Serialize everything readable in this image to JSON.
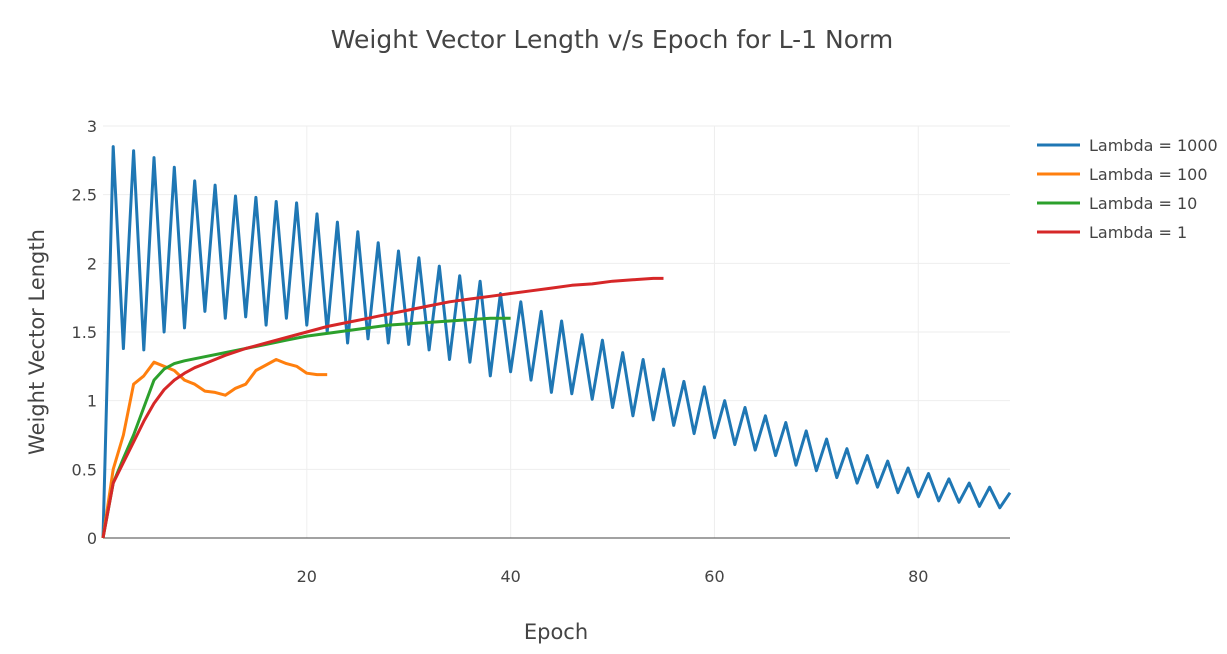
{
  "chart_data": {
    "type": "line",
    "title": "Weight Vector Length v/s Epoch for L-1 Norm",
    "xlabel": "Epoch",
    "ylabel": "Weight Vector Length",
    "xlim": [
      0,
      89
    ],
    "ylim": [
      0,
      3
    ],
    "xticks": [
      20,
      40,
      60,
      80
    ],
    "yticks": [
      0,
      0.5,
      1,
      1.5,
      2,
      2.5,
      3
    ],
    "grid": true,
    "legend": "top-right",
    "series": [
      {
        "name": "Lambda = 1000",
        "color": "#1f77b4",
        "x": [
          0,
          1,
          2,
          3,
          4,
          5,
          6,
          7,
          8,
          9,
          10,
          11,
          12,
          13,
          14,
          15,
          16,
          17,
          18,
          19,
          20,
          21,
          22,
          23,
          24,
          25,
          26,
          27,
          28,
          29,
          30,
          31,
          32,
          33,
          34,
          35,
          36,
          37,
          38,
          39,
          40,
          41,
          42,
          43,
          44,
          45,
          46,
          47,
          48,
          49,
          50,
          51,
          52,
          53,
          54,
          55,
          56,
          57,
          58,
          59,
          60,
          61,
          62,
          63,
          64,
          65,
          66,
          67,
          68,
          69,
          70,
          71,
          72,
          73,
          74,
          75,
          76,
          77,
          78,
          79,
          80,
          81,
          82,
          83,
          84,
          85,
          86,
          87,
          88,
          89
        ],
        "values": [
          0,
          2.85,
          1.38,
          2.82,
          1.37,
          2.77,
          1.5,
          2.7,
          1.53,
          2.6,
          1.65,
          2.57,
          1.6,
          2.49,
          1.61,
          2.48,
          1.55,
          2.45,
          1.6,
          2.44,
          1.55,
          2.36,
          1.5,
          2.3,
          1.42,
          2.23,
          1.45,
          2.15,
          1.42,
          2.09,
          1.41,
          2.04,
          1.37,
          1.98,
          1.3,
          1.91,
          1.28,
          1.87,
          1.18,
          1.78,
          1.21,
          1.72,
          1.15,
          1.65,
          1.06,
          1.58,
          1.05,
          1.48,
          1.01,
          1.44,
          0.95,
          1.35,
          0.89,
          1.3,
          0.86,
          1.23,
          0.82,
          1.14,
          0.76,
          1.1,
          0.73,
          1.0,
          0.68,
          0.95,
          0.64,
          0.89,
          0.6,
          0.84,
          0.53,
          0.78,
          0.49,
          0.72,
          0.44,
          0.65,
          0.4,
          0.6,
          0.37,
          0.56,
          0.33,
          0.51,
          0.3,
          0.47,
          0.27,
          0.43,
          0.26,
          0.4,
          0.23,
          0.37,
          0.22,
          0.33
        ]
      },
      {
        "name": "Lambda = 100",
        "color": "#ff7f0e",
        "x": [
          0,
          1,
          2,
          3,
          4,
          5,
          6,
          7,
          8,
          9,
          10,
          11,
          12,
          13,
          14,
          15,
          16,
          17,
          18,
          19,
          20,
          21,
          22
        ],
        "values": [
          0,
          0.5,
          0.75,
          1.12,
          1.18,
          1.28,
          1.25,
          1.22,
          1.15,
          1.12,
          1.07,
          1.06,
          1.04,
          1.09,
          1.12,
          1.22,
          1.26,
          1.3,
          1.27,
          1.25,
          1.2,
          1.19,
          1.19
        ]
      },
      {
        "name": "Lambda = 10",
        "color": "#2ca02c",
        "x": [
          0,
          1,
          2,
          3,
          4,
          5,
          6,
          7,
          8,
          10,
          12,
          14,
          16,
          18,
          20,
          22,
          24,
          26,
          28,
          30,
          32,
          34,
          36,
          38,
          40
        ],
        "values": [
          0,
          0.4,
          0.58,
          0.75,
          0.95,
          1.15,
          1.23,
          1.27,
          1.29,
          1.32,
          1.35,
          1.38,
          1.41,
          1.44,
          1.47,
          1.49,
          1.51,
          1.53,
          1.55,
          1.56,
          1.57,
          1.58,
          1.59,
          1.6,
          1.6
        ]
      },
      {
        "name": "Lambda = 1",
        "color": "#d62728",
        "x": [
          0,
          1,
          2,
          3,
          4,
          5,
          6,
          7,
          8,
          9,
          10,
          12,
          14,
          16,
          18,
          20,
          22,
          24,
          26,
          28,
          30,
          32,
          34,
          36,
          38,
          40,
          42,
          44,
          46,
          48,
          50,
          52,
          54,
          55
        ],
        "values": [
          0,
          0.4,
          0.55,
          0.7,
          0.85,
          0.98,
          1.08,
          1.15,
          1.2,
          1.24,
          1.27,
          1.33,
          1.38,
          1.42,
          1.46,
          1.5,
          1.54,
          1.57,
          1.6,
          1.63,
          1.66,
          1.69,
          1.72,
          1.74,
          1.76,
          1.78,
          1.8,
          1.82,
          1.84,
          1.85,
          1.87,
          1.88,
          1.89,
          1.89
        ]
      }
    ]
  }
}
